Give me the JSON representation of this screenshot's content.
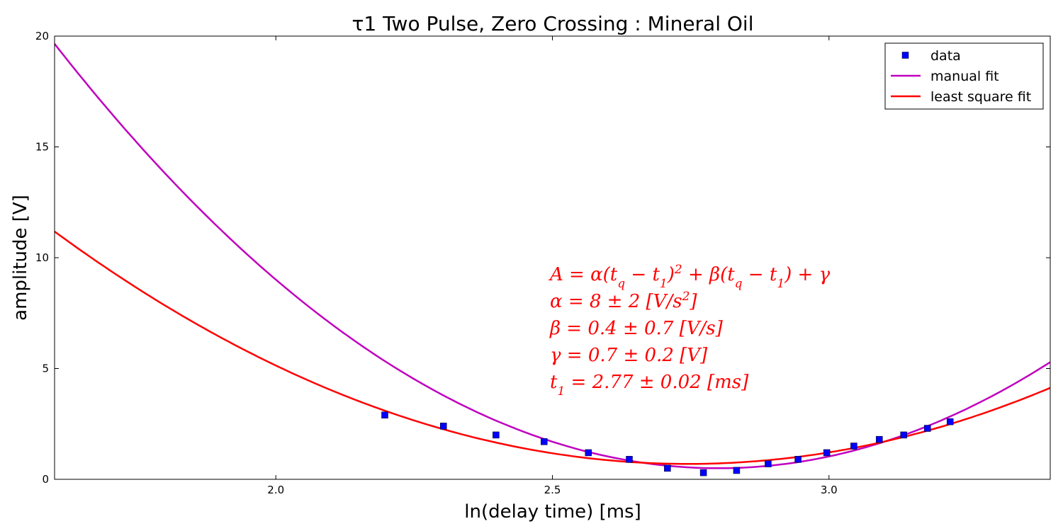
{
  "chart_data": {
    "type": "scatter",
    "title": "τ1 Two Pulse, Zero Crossing : Mineral Oil",
    "xlabel": "ln(delay time) [ms]",
    "ylabel": "amplitude [V]",
    "xlim": [
      1.6,
      3.4
    ],
    "ylim": [
      0,
      20
    ],
    "xticks": [
      2.0,
      2.5,
      3.0
    ],
    "xtick_labels": [
      "2.0",
      "2.5",
      "3.0"
    ],
    "yticks": [
      0,
      5,
      10,
      15,
      20
    ],
    "ytick_labels": [
      "0",
      "5",
      "10",
      "15",
      "20"
    ],
    "grid": false,
    "legend_position": "top-right",
    "legend": [
      {
        "label": "data",
        "kind": "marker",
        "color": "#0000ff"
      },
      {
        "label": "manual fit",
        "kind": "line",
        "color": "#bf00bf"
      },
      {
        "label": "least square fit",
        "kind": "line",
        "color": "#ff0000"
      }
    ],
    "series": [
      {
        "name": "data",
        "kind": "scatter",
        "color": "#0000ff",
        "x": [
          2.197,
          2.303,
          2.398,
          2.485,
          2.565,
          2.639,
          2.708,
          2.773,
          2.833,
          2.89,
          2.944,
          2.996,
          3.045,
          3.091,
          3.135,
          3.178,
          3.219
        ],
        "y": [
          2.9,
          2.4,
          2.0,
          1.7,
          1.2,
          0.9,
          0.5,
          0.3,
          0.4,
          0.7,
          0.9,
          1.2,
          1.5,
          1.8,
          2.0,
          2.3,
          2.6
        ]
      },
      {
        "name": "manual fit",
        "kind": "curve",
        "color": "#bf00bf",
        "model": "quadratic",
        "alpha": 13.3,
        "beta": 0.0,
        "gamma": 0.5,
        "t1": 2.8
      },
      {
        "name": "least square fit",
        "kind": "curve",
        "color": "#ff0000",
        "model": "quadratic",
        "alpha": 8,
        "beta": 0.4,
        "gamma": 0.7,
        "t1": 2.77
      }
    ],
    "annotation": [
      "A = α(t_q − t_1)^2 + β(t_q − t_1) + γ",
      "α = 8 ± 2 [V/s^2]",
      "β = 0.4 ± 0.7 [V/s]",
      "γ = 0.7 ± 0.2 [V]",
      "t_1 = 2.77 ± 0.02 [ms]"
    ]
  }
}
